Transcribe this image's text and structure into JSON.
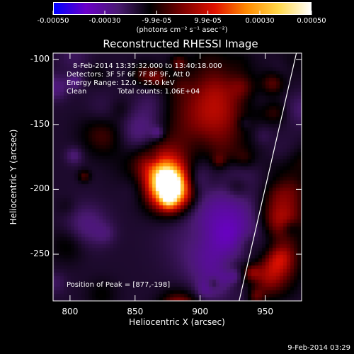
{
  "colorbar": {
    "labels": [
      "-0.00050",
      "-0.00030",
      "-9.9e-05",
      "9.9e-05",
      "0.00030",
      "0.00050"
    ],
    "units": "(photons cm⁻² s⁻¹ asec⁻²)",
    "colors": [
      "#0000ff",
      "#6a00c8",
      "#4a1a72",
      "#000000",
      "#7a0000",
      "#e01000",
      "#ff8a00",
      "#ffd84a",
      "#ffffff"
    ]
  },
  "annotations": {
    "time_range": "8-Feb-2014 13:35:32.000 to 13:40:18.000",
    "detectors": "Detectors: 3F 5F 6F 7F 8F 9F, Att 0",
    "energy": "Energy Range: 12.0 - 25.0 keV",
    "clean": "Clean",
    "counts": "Total counts: 1.06E+04",
    "peak": "Position of Peak = [877,-198]"
  },
  "footer": "9-Feb-2014 03:29",
  "chart_data": {
    "type": "heatmap",
    "title": "Reconstructed RHESSI Image",
    "xlabel": "Heliocentric X (arcsec)",
    "ylabel": "Heliocentric Y (arcsec)",
    "xlim": [
      787,
      978
    ],
    "ylim": [
      -286,
      -95
    ],
    "xticks": [
      800,
      850,
      900,
      950
    ],
    "yticks": [
      -100,
      -150,
      -200,
      -250
    ],
    "colorbar_range": [
      -0.0005,
      0.0005
    ],
    "peak_position": [
      877,
      -198
    ],
    "limb_line": [
      [
        930,
        -286
      ],
      [
        974,
        -95
      ]
    ]
  }
}
